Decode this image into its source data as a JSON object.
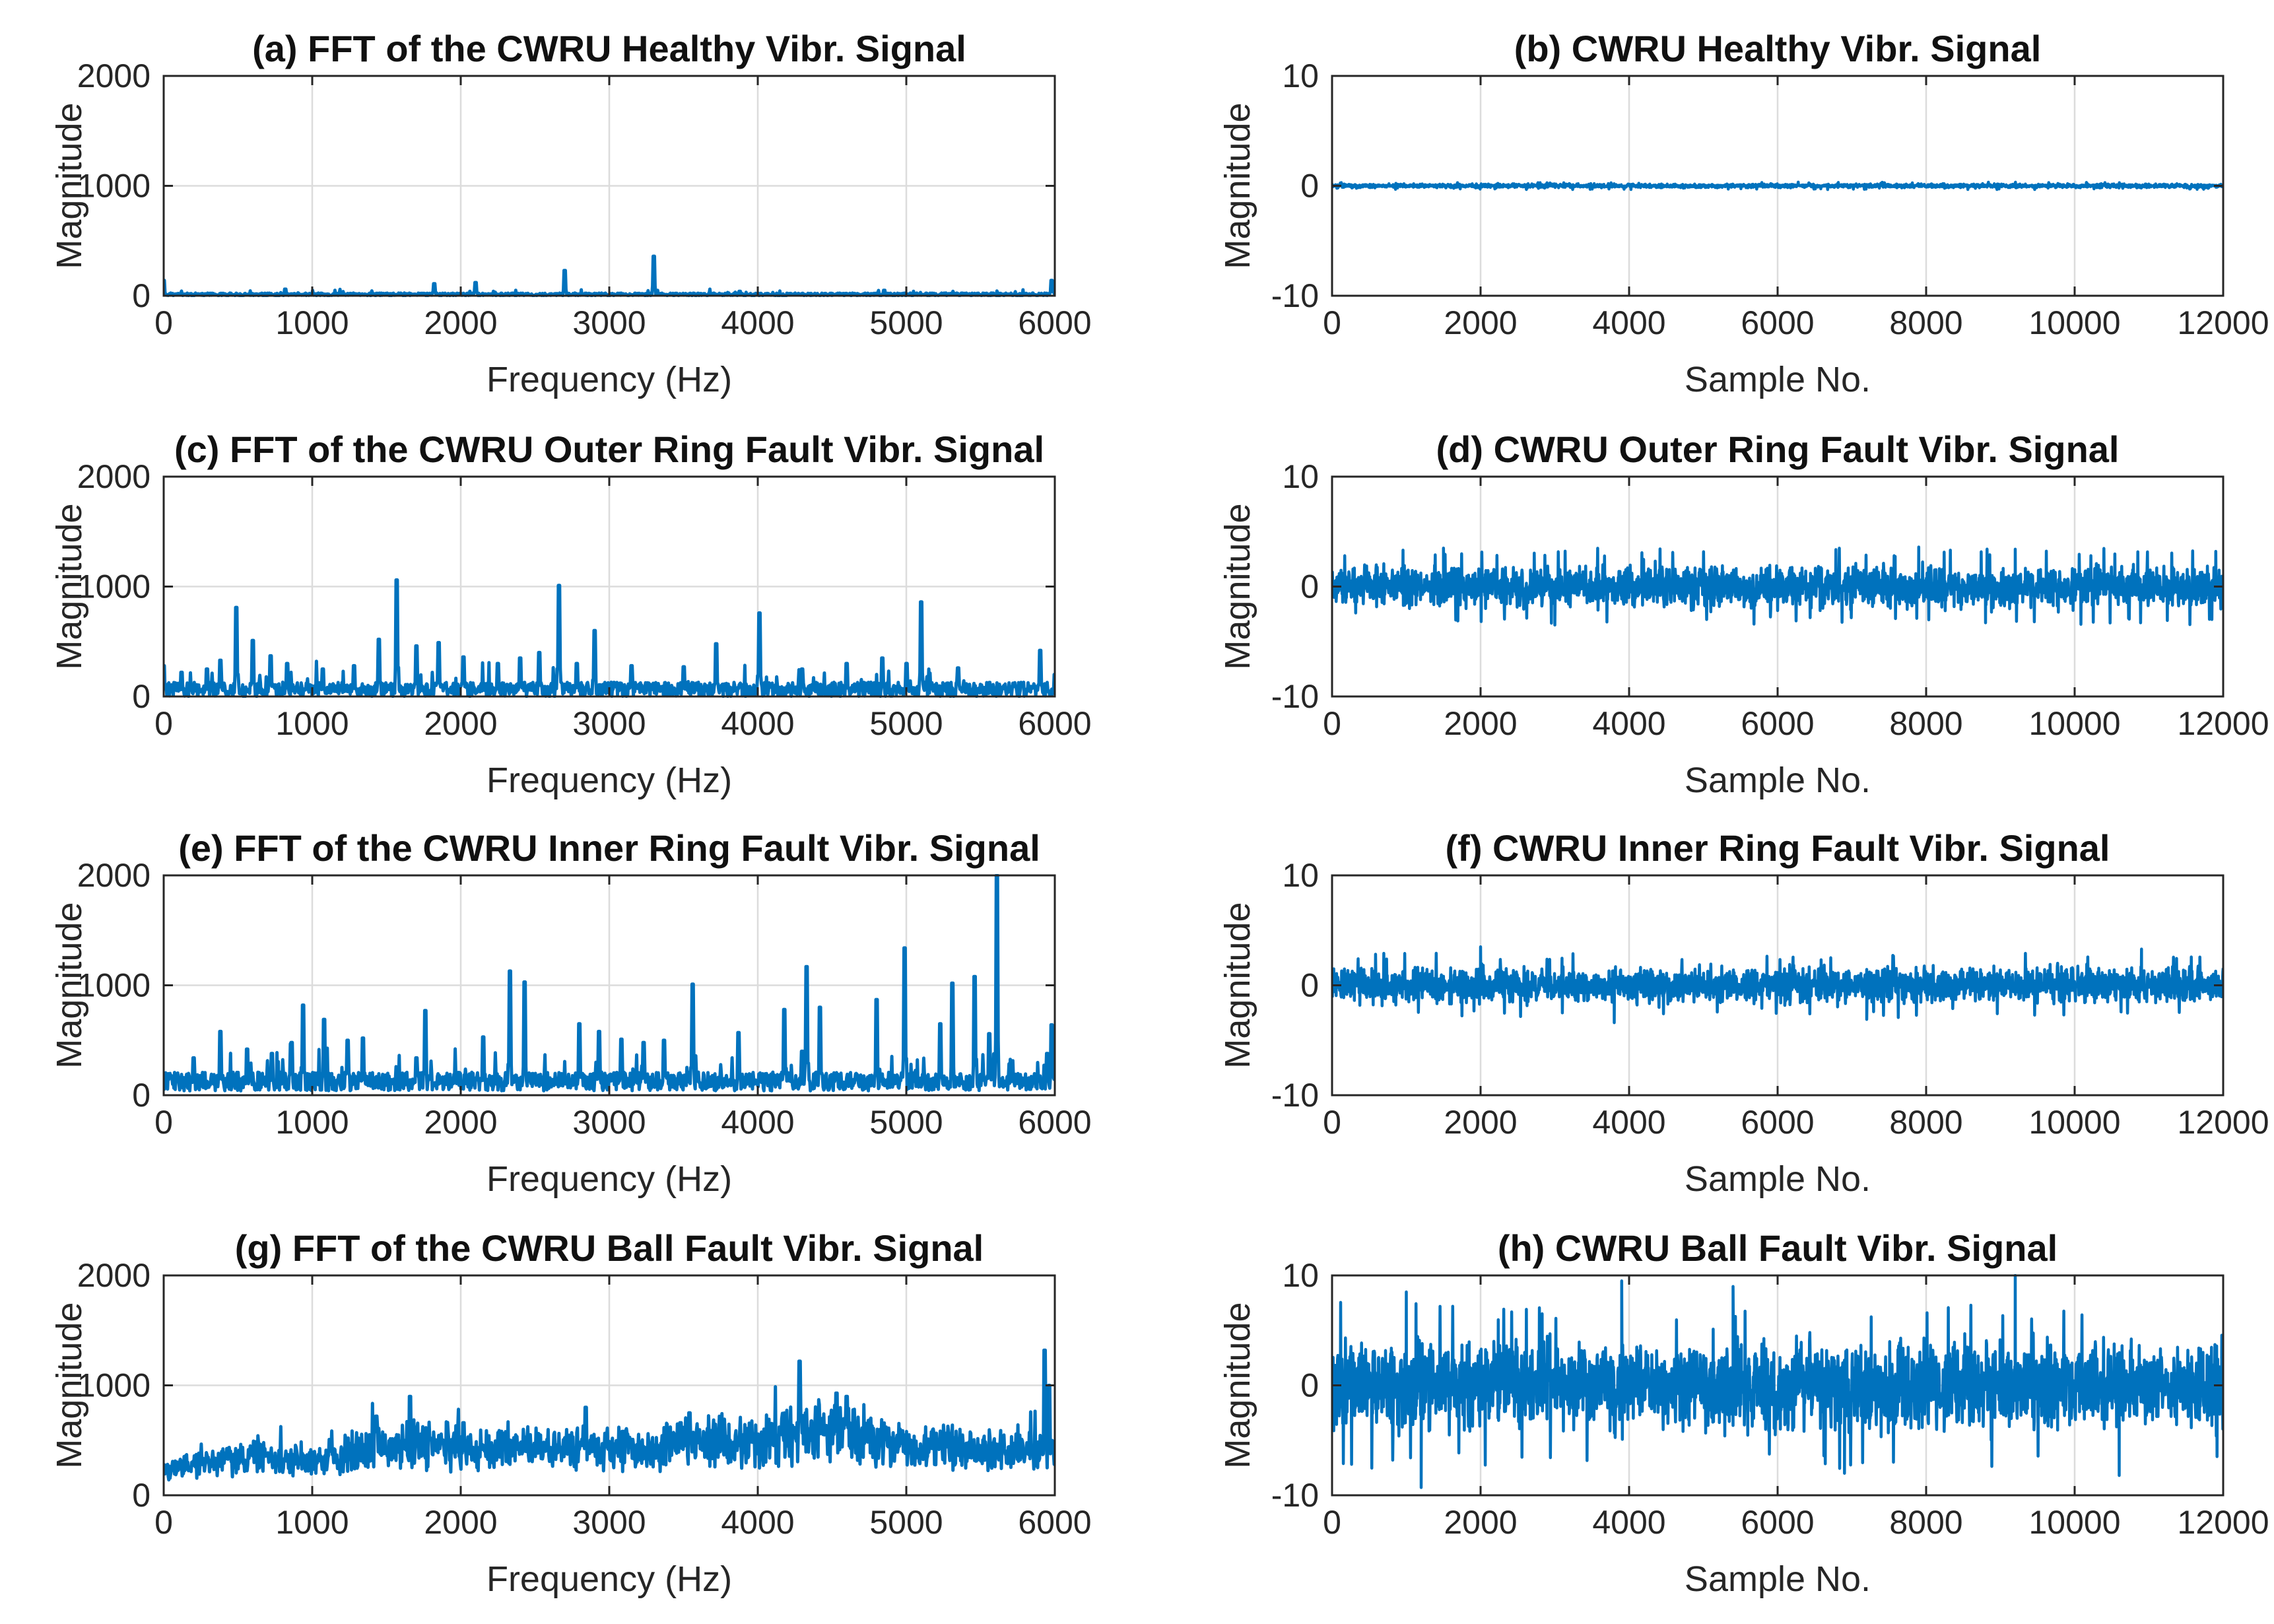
{
  "figure": {
    "line_color": "#0072BD"
  },
  "chart_data": [
    {
      "id": "a",
      "type": "line",
      "title": "(a) FFT of the CWRU Healthy Vibr. Signal",
      "xlabel": "Frequency (Hz)",
      "ylabel": "Magnitude",
      "xlim": [
        0,
        6000
      ],
      "ylim": [
        0,
        2000
      ],
      "xticks": [
        0,
        1000,
        2000,
        3000,
        4000,
        5000,
        6000
      ],
      "yticks": [
        0,
        1000,
        2000
      ],
      "grid": true,
      "signal": "spectrum",
      "noise": 25,
      "baseline": 0,
      "seed": 11,
      "peaks": [
        [
          0,
          140
        ],
        [
          820,
          60
        ],
        [
          1820,
          110
        ],
        [
          2100,
          120
        ],
        [
          2700,
          230
        ],
        [
          3300,
          360
        ],
        [
          3880,
          40
        ],
        [
          4850,
          50
        ],
        [
          5980,
          140
        ]
      ]
    },
    {
      "id": "b",
      "type": "line",
      "title": "(b) CWRU Healthy Vibr. Signal",
      "xlabel": "Sample No.",
      "ylabel": "Magnitude",
      "xlim": [
        0,
        12000
      ],
      "ylim": [
        -10,
        10
      ],
      "xticks": [
        0,
        2000,
        4000,
        6000,
        8000,
        10000,
        12000
      ],
      "yticks": [
        -10,
        0,
        10
      ],
      "grid": true,
      "signal": "time",
      "amplitude": 0.25,
      "spikes": [],
      "seed": 21
    },
    {
      "id": "c",
      "type": "line",
      "title": "(c) FFT of the CWRU Outer Ring Fault Vibr. Signal",
      "xlabel": "Frequency (Hz)",
      "ylabel": "Magnitude",
      "xlim": [
        0,
        6000
      ],
      "ylim": [
        0,
        2000
      ],
      "xticks": [
        0,
        1000,
        2000,
        3000,
        4000,
        5000,
        6000
      ],
      "yticks": [
        0,
        1000,
        2000
      ],
      "grid": true,
      "signal": "spectrum",
      "noise": 130,
      "baseline": 0,
      "seed": 31,
      "peaks": [
        [
          0,
          280
        ],
        [
          120,
          220
        ],
        [
          290,
          250
        ],
        [
          380,
          330
        ],
        [
          490,
          810
        ],
        [
          600,
          510
        ],
        [
          720,
          370
        ],
        [
          830,
          300
        ],
        [
          1070,
          250
        ],
        [
          1280,
          280
        ],
        [
          1450,
          520
        ],
        [
          1570,
          1060
        ],
        [
          1700,
          460
        ],
        [
          1850,
          490
        ],
        [
          2020,
          360
        ],
        [
          2250,
          300
        ],
        [
          2400,
          350
        ],
        [
          2530,
          400
        ],
        [
          2660,
          1010
        ],
        [
          2780,
          300
        ],
        [
          2900,
          600
        ],
        [
          3150,
          280
        ],
        [
          3500,
          270
        ],
        [
          3720,
          480
        ],
        [
          4010,
          760
        ],
        [
          4300,
          250
        ],
        [
          4600,
          300
        ],
        [
          4840,
          350
        ],
        [
          5000,
          300
        ],
        [
          5100,
          860
        ],
        [
          5350,
          260
        ],
        [
          5900,
          420
        ],
        [
          6000,
          200
        ]
      ]
    },
    {
      "id": "d",
      "type": "line",
      "title": "(d) CWRU Outer Ring Fault Vibr. Signal",
      "xlabel": "Sample No.",
      "ylabel": "Magnitude",
      "xlim": [
        0,
        12000
      ],
      "ylim": [
        -10,
        10
      ],
      "xticks": [
        0,
        2000,
        4000,
        6000,
        8000,
        10000,
        12000
      ],
      "yticks": [
        -10,
        0,
        10
      ],
      "grid": true,
      "signal": "time",
      "amplitude": 2.6,
      "spikes": [
        [
          1500,
          3.5
        ],
        [
          7900,
          3.6
        ],
        [
          9200,
          3.4
        ],
        [
          11900,
          3.2
        ],
        [
          3000,
          -3.5
        ],
        [
          8800,
          -3.3
        ]
      ],
      "seed": 41
    },
    {
      "id": "e",
      "type": "line",
      "title": "(e) FFT of the CWRU Inner Ring Fault Vibr. Signal",
      "xlabel": "Frequency (Hz)",
      "ylabel": "Magnitude",
      "xlim": [
        0,
        6000
      ],
      "ylim": [
        0,
        2000
      ],
      "xticks": [
        0,
        1000,
        2000,
        3000,
        4000,
        5000,
        6000
      ],
      "yticks": [
        0,
        1000,
        2000
      ],
      "grid": true,
      "signal": "spectrum",
      "noise": 170,
      "baseline": 40,
      "seed": 51,
      "peaks": [
        [
          200,
          340
        ],
        [
          380,
          580
        ],
        [
          560,
          420
        ],
        [
          730,
          380
        ],
        [
          860,
          480
        ],
        [
          940,
          820
        ],
        [
          1080,
          690
        ],
        [
          1240,
          500
        ],
        [
          1340,
          520
        ],
        [
          1700,
          340
        ],
        [
          1760,
          770
        ],
        [
          2150,
          530
        ],
        [
          2330,
          1130
        ],
        [
          2430,
          1030
        ],
        [
          2800,
          650
        ],
        [
          2930,
          580
        ],
        [
          3080,
          510
        ],
        [
          3230,
          480
        ],
        [
          3370,
          500
        ],
        [
          3560,
          1010
        ],
        [
          3870,
          570
        ],
        [
          4180,
          780
        ],
        [
          4300,
          400
        ],
        [
          4330,
          1170
        ],
        [
          4420,
          800
        ],
        [
          4800,
          870
        ],
        [
          4990,
          1340
        ],
        [
          5230,
          650
        ],
        [
          5310,
          1020
        ],
        [
          5460,
          1080
        ],
        [
          5560,
          560
        ],
        [
          5610,
          2000
        ],
        [
          5950,
          380
        ],
        [
          5980,
          640
        ]
      ]
    },
    {
      "id": "f",
      "type": "line",
      "title": "(f) CWRU Inner Ring Fault Vibr. Signal",
      "xlabel": "Sample No.",
      "ylabel": "Magnitude",
      "xlim": [
        0,
        12000
      ],
      "ylim": [
        -10,
        10
      ],
      "xticks": [
        0,
        2000,
        4000,
        6000,
        8000,
        10000,
        12000
      ],
      "yticks": [
        -10,
        0,
        10
      ],
      "grid": true,
      "signal": "time",
      "amplitude": 2.2,
      "spikes": [
        [
          2000,
          3.5
        ],
        [
          10900,
          3.3
        ],
        [
          3800,
          -3.4
        ],
        [
          7200,
          -3.1
        ]
      ],
      "seed": 61
    },
    {
      "id": "g",
      "type": "line",
      "title": "(g) FFT of the CWRU Ball Fault Vibr. Signal",
      "xlabel": "Frequency (Hz)",
      "ylabel": "Magnitude",
      "xlim": [
        0,
        6000
      ],
      "ylim": [
        0,
        2000
      ],
      "xticks": [
        0,
        1000,
        2000,
        3000,
        4000,
        5000,
        6000
      ],
      "yticks": [
        0,
        1000,
        2000
      ],
      "grid": true,
      "signal": "spectrum",
      "noise": 190,
      "baseline": 110,
      "seed": 71,
      "envelope": [
        [
          0,
          60
        ],
        [
          600,
          220
        ],
        [
          1000,
          180
        ],
        [
          1400,
          380
        ],
        [
          1700,
          420
        ],
        [
          2100,
          350
        ],
        [
          2800,
          380
        ],
        [
          3300,
          330
        ],
        [
          3500,
          480
        ],
        [
          4000,
          420
        ],
        [
          4300,
          600
        ],
        [
          4600,
          560
        ],
        [
          5000,
          380
        ],
        [
          5500,
          330
        ],
        [
          5900,
          380
        ],
        [
          6000,
          300
        ]
      ],
      "peaks": [
        [
          700,
          380
        ],
        [
          1430,
          720
        ],
        [
          1660,
          900
        ],
        [
          2020,
          660
        ],
        [
          2510,
          520
        ],
        [
          2840,
          800
        ],
        [
          3480,
          660
        ],
        [
          3540,
          750
        ],
        [
          4280,
          1220
        ],
        [
          4530,
          930
        ],
        [
          4600,
          900
        ],
        [
          5930,
          1320
        ],
        [
          5960,
          1000
        ]
      ]
    },
    {
      "id": "h",
      "type": "line",
      "title": "(h) CWRU Ball Fault Vibr. Signal",
      "xlabel": "Sample No.",
      "ylabel": "Magnitude",
      "xlim": [
        0,
        12000
      ],
      "ylim": [
        -10,
        10
      ],
      "xticks": [
        0,
        2000,
        4000,
        6000,
        8000,
        10000,
        12000
      ],
      "yticks": [
        -10,
        0,
        10
      ],
      "grid": true,
      "signal": "time",
      "amplitude": 5.6,
      "spikes": [
        [
          3900,
          9.5
        ],
        [
          9200,
          10
        ],
        [
          1000,
          8.5
        ],
        [
          5400,
          9
        ],
        [
          1200,
          -9.3
        ],
        [
          10600,
          -8.2
        ],
        [
          6900,
          -8
        ]
      ],
      "seed": 81
    }
  ]
}
